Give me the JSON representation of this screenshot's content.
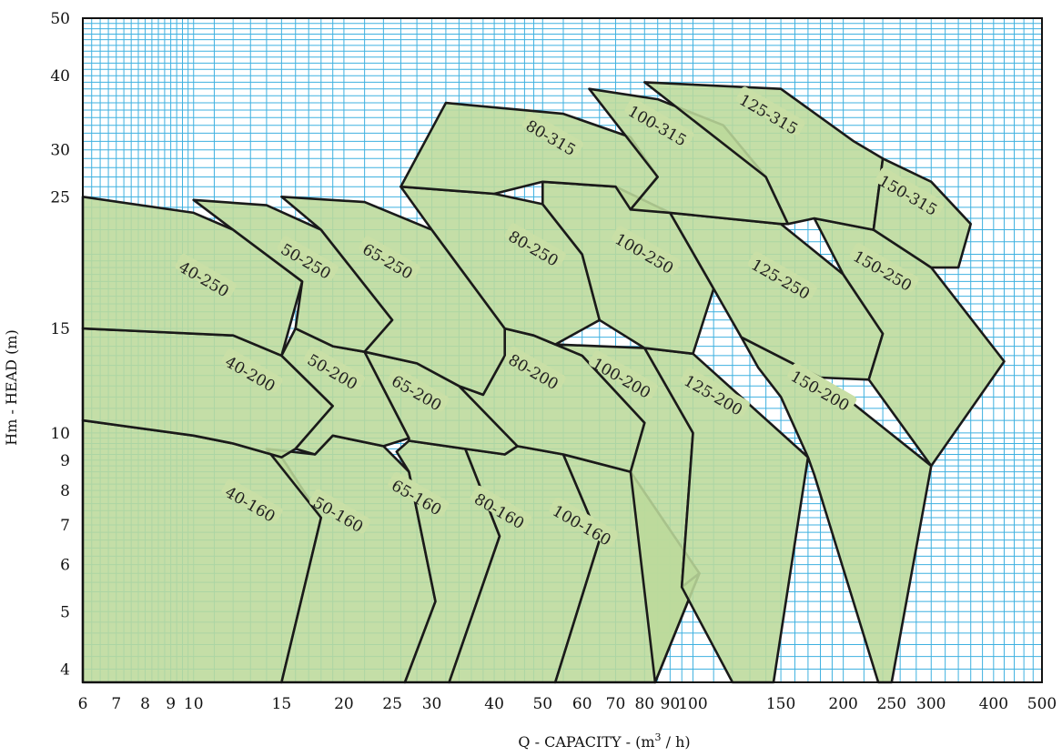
{
  "chart_data": {
    "type": "area",
    "title": "",
    "xlabel": "Q - CAPACITY - (m",
    "xlabel_sup": "3",
    "xlabel_tail": " / h)",
    "ylabel": "Hm - HEAD (m)",
    "x_scale": "log",
    "y_scale": "log",
    "xlim": [
      6,
      500
    ],
    "ylim": [
      3.8,
      50
    ],
    "grid": true,
    "colors": {
      "fill": "#bcd99b",
      "grid": "#3fb1e0",
      "outline": "#1a1a1a",
      "label_bg": "#c9dfa6"
    },
    "x_ticks": [
      6,
      7,
      8,
      9,
      10,
      15,
      20,
      25,
      30,
      40,
      50,
      60,
      70,
      80,
      90,
      100,
      150,
      200,
      250,
      300,
      400,
      500
    ],
    "y_ticks": [
      4,
      5,
      6,
      7,
      8,
      9,
      10,
      15,
      25,
      30,
      40,
      50
    ],
    "x_tick_labels": [
      "6",
      "7",
      "8",
      "9",
      "10",
      "15",
      "20",
      "25",
      "30",
      "40",
      "50",
      "60",
      "70",
      "80",
      "90",
      "100",
      "150",
      "200",
      "250",
      "300",
      "400",
      "500"
    ],
    "y_tick_labels": [
      "4",
      "5",
      "6",
      "7",
      "8",
      "9",
      "10",
      "15",
      "25",
      "30",
      "40",
      "50"
    ],
    "regions": [
      {
        "name": "40-160",
        "label_at": [
          13,
          7.6
        ],
        "polygon": [
          [
            6,
            10.5
          ],
          [
            10,
            9.9
          ],
          [
            12,
            9.6
          ],
          [
            15,
            9.1
          ],
          [
            18,
            7.2
          ],
          [
            15,
            3.8
          ],
          [
            6,
            3.8
          ]
        ]
      },
      {
        "name": "50-160",
        "label_at": [
          19.5,
          7.3
        ],
        "polygon": [
          [
            19,
            9.9
          ],
          [
            24,
            9.5
          ],
          [
            27,
            8.6
          ],
          [
            30.5,
            5.2
          ],
          [
            26.5,
            3.8
          ],
          [
            15,
            3.8
          ],
          [
            18,
            7.2
          ],
          [
            14,
            9.4
          ],
          [
            17.5,
            9.2
          ]
        ]
      },
      {
        "name": "65-160",
        "label_at": [
          28,
          7.8
        ],
        "polygon": [
          [
            27,
            9.7
          ],
          [
            35,
            9.4
          ],
          [
            41,
            6.7
          ],
          [
            32.5,
            3.8
          ],
          [
            26.5,
            3.8
          ],
          [
            30.5,
            5.2
          ],
          [
            27,
            8.6
          ],
          [
            25.5,
            9.3
          ]
        ]
      },
      {
        "name": "80-160",
        "label_at": [
          41,
          7.4
        ],
        "polygon": [
          [
            44.5,
            9.5
          ],
          [
            55,
            9.2
          ],
          [
            65,
            6.6
          ],
          [
            53,
            3.8
          ],
          [
            32.5,
            3.8
          ],
          [
            41,
            6.7
          ],
          [
            35,
            9.4
          ],
          [
            42,
            9.2
          ]
        ]
      },
      {
        "name": "100-160",
        "label_at": [
          60,
          7.0
        ],
        "polygon": [
          [
            55,
            9.2
          ],
          [
            75,
            8.6
          ],
          [
            103,
            5.8
          ],
          [
            84,
            3.8
          ],
          [
            53,
            3.8
          ],
          [
            65,
            6.6
          ]
        ]
      },
      {
        "name": "40-200",
        "label_at": [
          13,
          12.6
        ],
        "polygon": [
          [
            6,
            15
          ],
          [
            12,
            14.6
          ],
          [
            15,
            13.5
          ],
          [
            19,
            11.1
          ],
          [
            16,
            9.4
          ],
          [
            15,
            9.1
          ],
          [
            12,
            9.6
          ],
          [
            10,
            9.9
          ],
          [
            6,
            10.5
          ]
        ]
      },
      {
        "name": "50-200",
        "label_at": [
          19,
          12.7
        ],
        "polygon": [
          [
            16,
            15
          ],
          [
            19,
            14
          ],
          [
            22,
            13.7
          ],
          [
            27,
            9.8
          ],
          [
            24,
            9.5
          ],
          [
            19,
            9.9
          ],
          [
            17.5,
            9.2
          ],
          [
            16,
            9.4
          ],
          [
            19,
            11.1
          ],
          [
            15,
            13.5
          ]
        ]
      },
      {
        "name": "65-200",
        "label_at": [
          28,
          11.7
        ],
        "polygon": [
          [
            22,
            13.7
          ],
          [
            28,
            13.1
          ],
          [
            34,
            12.0
          ],
          [
            44.5,
            9.5
          ],
          [
            42,
            9.2
          ],
          [
            35,
            9.4
          ],
          [
            27,
            9.7
          ],
          [
            27,
            9.8
          ]
        ]
      },
      {
        "name": "80-200",
        "label_at": [
          48,
          12.7
        ],
        "polygon": [
          [
            42,
            15
          ],
          [
            48,
            14.6
          ],
          [
            60,
            13.5
          ],
          [
            80,
            10.4
          ],
          [
            75,
            8.6
          ],
          [
            55,
            9.2
          ],
          [
            44.5,
            9.5
          ],
          [
            34,
            12.0
          ],
          [
            38,
            11.6
          ],
          [
            42,
            13.5
          ]
        ]
      },
      {
        "name": "100-200",
        "label_at": [
          72,
          12.4
        ],
        "polygon": [
          [
            53,
            14.1
          ],
          [
            80,
            13.9
          ],
          [
            100,
            10.0
          ],
          [
            95,
            5.5
          ],
          [
            103,
            5.8
          ],
          [
            84,
            3.8
          ],
          [
            75,
            8.6
          ],
          [
            80,
            10.4
          ],
          [
            60,
            13.5
          ],
          [
            48,
            14.6
          ]
        ]
      },
      {
        "name": "125-200",
        "label_at": [
          110,
          11.6
        ],
        "polygon": [
          [
            80,
            13.9
          ],
          [
            100,
            13.6
          ],
          [
            170,
            9.1
          ],
          [
            145,
            3.8
          ],
          [
            120,
            3.8
          ],
          [
            95,
            5.5
          ],
          [
            100,
            10.0
          ]
        ]
      },
      {
        "name": "150-200",
        "label_at": [
          180,
          11.8
        ],
        "polygon": [
          [
            125,
            14.5
          ],
          [
            180,
            12.4
          ],
          [
            300,
            8.8
          ],
          [
            250,
            3.8
          ],
          [
            235,
            3.8
          ],
          [
            175,
            8.5
          ],
          [
            170,
            9.1
          ],
          [
            150,
            11.5
          ],
          [
            135,
            12.9
          ]
        ]
      },
      {
        "name": "40-250",
        "label_at": [
          10.5,
          18.2
        ],
        "polygon": [
          [
            6,
            25
          ],
          [
            10,
            23.5
          ],
          [
            12,
            22
          ],
          [
            16.5,
            18.0
          ],
          [
            15,
            13.5
          ],
          [
            12,
            14.6
          ],
          [
            6,
            15
          ]
        ]
      },
      {
        "name": "50-250",
        "label_at": [
          16.8,
          19.5
        ],
        "polygon": [
          [
            10,
            24.7
          ],
          [
            14,
            24.2
          ],
          [
            18,
            22
          ],
          [
            25,
            15.5
          ],
          [
            22,
            13.7
          ],
          [
            19,
            14
          ],
          [
            16,
            15
          ],
          [
            16.5,
            18.0
          ],
          [
            12,
            22
          ]
        ]
      },
      {
        "name": "65-250",
        "label_at": [
          24.5,
          19.5
        ],
        "polygon": [
          [
            15,
            25
          ],
          [
            22,
            24.5
          ],
          [
            30,
            22
          ],
          [
            42,
            15
          ],
          [
            42,
            13.5
          ],
          [
            38,
            11.6
          ],
          [
            34,
            12.0
          ],
          [
            28,
            13.1
          ],
          [
            22,
            13.7
          ],
          [
            25,
            15.5
          ],
          [
            18,
            22
          ]
        ]
      },
      {
        "name": "80-250",
        "label_at": [
          48,
          20.5
        ],
        "polygon": [
          [
            26,
            26
          ],
          [
            40,
            25.3
          ],
          [
            50,
            24.3
          ],
          [
            60,
            20
          ],
          [
            65,
            15.5
          ],
          [
            53,
            14.1
          ],
          [
            48,
            14.6
          ],
          [
            42,
            15
          ],
          [
            30,
            22
          ]
        ]
      },
      {
        "name": "100-250",
        "label_at": [
          80,
          20.1
        ],
        "polygon": [
          [
            50,
            26.5
          ],
          [
            70,
            26
          ],
          [
            90,
            23.5
          ],
          [
            110,
            17.5
          ],
          [
            100,
            13.6
          ],
          [
            80,
            13.9
          ],
          [
            65,
            15.5
          ],
          [
            60,
            20
          ],
          [
            50,
            24.3
          ]
        ]
      },
      {
        "name": "125-250",
        "label_at": [
          150,
          18.2
        ],
        "polygon": [
          [
            90,
            23.5
          ],
          [
            150,
            22.5
          ],
          [
            200,
            18.5
          ],
          [
            240,
            14.7
          ],
          [
            225,
            12.3
          ],
          [
            180,
            12.4
          ],
          [
            125,
            14.5
          ],
          [
            110,
            17.5
          ]
        ]
      },
      {
        "name": "150-250",
        "label_at": [
          240,
          18.8
        ],
        "polygon": [
          [
            175,
            23
          ],
          [
            230,
            22
          ],
          [
            300,
            19
          ],
          [
            420,
            13.2
          ],
          [
            300,
            8.8
          ],
          [
            225,
            12.3
          ],
          [
            240,
            14.7
          ],
          [
            200,
            18.5
          ]
        ]
      },
      {
        "name": "80-315",
        "label_at": [
          52,
          31.5
        ],
        "polygon": [
          [
            32,
            36
          ],
          [
            55,
            34.5
          ],
          [
            75,
            31.5
          ],
          [
            85,
            27
          ],
          [
            75,
            23.8
          ],
          [
            70,
            26
          ],
          [
            50,
            26.5
          ],
          [
            40,
            25.3
          ],
          [
            26,
            26
          ]
        ]
      },
      {
        "name": "100-315",
        "label_at": [
          85,
          33
        ],
        "polygon": [
          [
            62,
            38
          ],
          [
            85,
            36.5
          ],
          [
            115,
            33
          ],
          [
            140,
            27
          ],
          [
            155,
            22.5
          ],
          [
            150,
            22.5
          ],
          [
            90,
            23.5
          ],
          [
            75,
            23.8
          ],
          [
            85,
            27
          ]
        ]
      },
      {
        "name": "125-315",
        "label_at": [
          142,
          34.5
        ],
        "polygon": [
          [
            80,
            39
          ],
          [
            150,
            38
          ],
          [
            210,
            31
          ],
          [
            240,
            29
          ],
          [
            230,
            22
          ],
          [
            175,
            23
          ],
          [
            155,
            22.5
          ],
          [
            140,
            27
          ]
        ]
      },
      {
        "name": "150-315",
        "label_at": [
          270,
          25.2
        ],
        "polygon": [
          [
            240,
            29
          ],
          [
            300,
            26.5
          ],
          [
            360,
            22.5
          ],
          [
            340,
            19
          ],
          [
            300,
            19
          ],
          [
            230,
            22
          ]
        ]
      }
    ]
  }
}
